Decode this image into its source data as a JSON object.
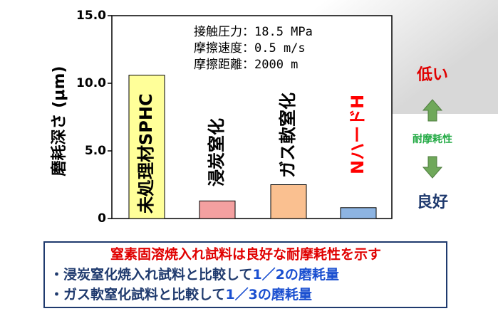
{
  "chart_data": {
    "type": "bar",
    "y_label": "磨耗深さ (μm)",
    "categories": [
      "未処理材SPHC",
      "浸炭窒化",
      "ガス軟窒化",
      "NハードH"
    ],
    "values": [
      10.6,
      1.3,
      2.5,
      0.8
    ],
    "colors": [
      "#ffff99",
      "#f4a0a0",
      "#fac090",
      "#8db4e2"
    ],
    "label_colors": [
      "#000000",
      "#000000",
      "#000000",
      "#ff0000"
    ],
    "ylim": [
      0,
      15
    ],
    "yticks": [
      0,
      {
        "value": 5,
        "label": "5.0"
      },
      {
        "value": 10,
        "label": "10.0"
      },
      {
        "value": 15,
        "label": "15.0"
      }
    ],
    "annotations": [
      "接触圧力：18.5 MPa",
      "摩擦速度：0.5 m/s",
      "摩擦距離：2000 m"
    ]
  },
  "side": {
    "top": "低い",
    "middle": "耐摩耗性",
    "bottom": "良好"
  },
  "summary": {
    "title": "窒素固溶焼入れ試料は良好な耐摩耗性を示す",
    "lines": [
      {
        "text": "・浸炭窒化焼入れ試料と比較して",
        "emphasis": "1／2の磨耗量"
      },
      {
        "text": "・ガス軟窒化試料と比較して",
        "emphasis": "1／3の磨耗量"
      }
    ]
  }
}
